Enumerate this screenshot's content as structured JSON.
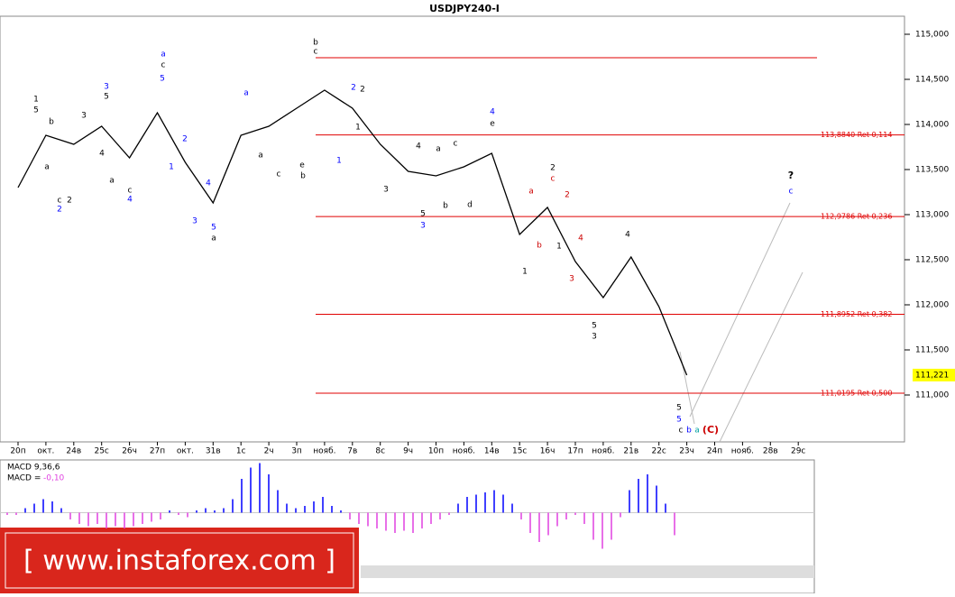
{
  "chart_data": [
    {
      "type": "line",
      "title": "USDJPY240-I",
      "categories": [
        "20п",
        "окт.",
        "24в",
        "25с",
        "26ч",
        "27п",
        "окт.",
        "31в",
        "1с",
        "2ч",
        "3п",
        "нояб.",
        "7в",
        "8с",
        "9ч",
        "10п",
        "нояб.",
        "14в",
        "15с",
        "16ч",
        "17п",
        "нояб.",
        "21в",
        "22с",
        "23ч",
        "24п",
        "нояб.",
        "28в",
        "29с"
      ],
      "series": [
        {
          "name": "USDJPY240-I",
          "color": "#000000",
          "values": [
            113.3,
            113.88,
            113.78,
            113.98,
            113.63,
            114.13,
            113.58,
            113.13,
            113.88,
            113.98,
            114.18,
            114.38,
            114.18,
            113.78,
            113.48,
            113.43,
            113.53,
            113.68,
            112.78,
            113.08,
            112.48,
            112.08,
            112.53,
            111.98,
            111.22,
            null,
            null,
            null,
            null
          ]
        }
      ],
      "ylim": [
        110.48,
        115.2
      ],
      "yticks": [
        {
          "value": 111,
          "label": "111,000"
        },
        {
          "value": 111.5,
          "label": "111,500"
        },
        {
          "value": 112,
          "label": "112,000"
        },
        {
          "value": 112.5,
          "label": "112,500"
        },
        {
          "value": 113,
          "label": "113,000"
        },
        {
          "value": 113.5,
          "label": "113,500"
        },
        {
          "value": 114,
          "label": "114,000"
        },
        {
          "value": 114.5,
          "label": "114,500"
        },
        {
          "value": 115,
          "label": "115,000"
        }
      ],
      "levels": [
        {
          "value": 114.74
        },
        {
          "value": 113.884,
          "label": "113,8840 Ret 0,114"
        },
        {
          "value": 112.9786,
          "label": "112,9786 Ret 0,236"
        },
        {
          "value": 111.8952,
          "label": "111,8952 Ret 0,382"
        },
        {
          "value": 111.0195,
          "label": "111,0195 Ret 0,500"
        }
      ],
      "level_color": "#e00000",
      "last_price": {
        "value": 111.221,
        "label": "111,221"
      },
      "annotations": [
        {
          "text": "1",
          "color": "#000000"
        },
        {
          "text": "5",
          "color": "#000000"
        },
        {
          "text": "b",
          "color": "#000000"
        },
        {
          "text": "a",
          "color": "#000000"
        },
        {
          "text": "c",
          "color": "#000000"
        },
        {
          "text": "2",
          "color": "#0000ff"
        },
        {
          "text": "2",
          "color": "#000000"
        },
        {
          "text": "3",
          "color": "#000000"
        },
        {
          "text": "3",
          "color": "#0000ff"
        },
        {
          "text": "5",
          "color": "#000000"
        },
        {
          "text": "4",
          "color": "#000000"
        },
        {
          "text": "a",
          "color": "#000000"
        },
        {
          "text": "c",
          "color": "#000000"
        },
        {
          "text": "4",
          "color": "#0000ff"
        },
        {
          "text": "a",
          "color": "#0000ff"
        },
        {
          "text": "c",
          "color": "#000000"
        },
        {
          "text": "5",
          "color": "#0000ff"
        },
        {
          "text": "2",
          "color": "#0000ff"
        },
        {
          "text": "1",
          "color": "#0000ff"
        },
        {
          "text": "4",
          "color": "#0000ff"
        },
        {
          "text": "3",
          "color": "#0000ff"
        },
        {
          "text": "5",
          "color": "#0000ff"
        },
        {
          "text": "a",
          "color": "#000000"
        },
        {
          "text": "a",
          "color": "#0000ff"
        },
        {
          "text": "a",
          "color": "#000000"
        },
        {
          "text": "c",
          "color": "#000000"
        },
        {
          "text": "e",
          "color": "#000000"
        },
        {
          "text": "b",
          "color": "#000000"
        },
        {
          "text": "b",
          "color": "#000000"
        },
        {
          "text": "c",
          "color": "#000000"
        },
        {
          "text": "2",
          "color": "#0000ff"
        },
        {
          "text": "2",
          "color": "#000000"
        },
        {
          "text": "1",
          "color": "#000000"
        },
        {
          "text": "1",
          "color": "#0000ff"
        },
        {
          "text": "3",
          "color": "#000000"
        },
        {
          "text": "4",
          "color": "#000000"
        },
        {
          "text": "a",
          "color": "#000000"
        },
        {
          "text": "c",
          "color": "#000000"
        },
        {
          "text": "b",
          "color": "#000000"
        },
        {
          "text": "d",
          "color": "#000000"
        },
        {
          "text": "5",
          "color": "#000000"
        },
        {
          "text": "3",
          "color": "#0000ff"
        },
        {
          "text": "4",
          "color": "#0000ff"
        },
        {
          "text": "e",
          "color": "#000000"
        },
        {
          "text": "2",
          "color": "#000000"
        },
        {
          "text": "c",
          "color": "#cc0000"
        },
        {
          "text": "a",
          "color": "#cc0000"
        },
        {
          "text": "2",
          "color": "#cc0000"
        },
        {
          "text": "b",
          "color": "#cc0000"
        },
        {
          "text": "1",
          "color": "#000000"
        },
        {
          "text": "4",
          "color": "#cc0000"
        },
        {
          "text": "3",
          "color": "#cc0000"
        },
        {
          "text": "1",
          "color": "#000000"
        },
        {
          "text": "5",
          "color": "#000000"
        },
        {
          "text": "3",
          "color": "#000000"
        },
        {
          "text": "4",
          "color": "#000000"
        },
        {
          "text": "5",
          "color": "#000000"
        },
        {
          "text": "5",
          "color": "#0000ff"
        },
        {
          "text": "c",
          "color": "#000000"
        },
        {
          "text": "b",
          "color": "#0000ff"
        },
        {
          "text": "a",
          "color": "#00a0a0"
        },
        {
          "text": "(C)",
          "color": "#cc0000"
        },
        {
          "text": "?",
          "color": "#000000"
        },
        {
          "text": "c",
          "color": "#0000ff"
        }
      ]
    },
    {
      "type": "bar",
      "title": "MACD 9,36,6",
      "value_name": "MACD =",
      "last_label": "-0,10",
      "values": [
        -0.01,
        -0.01,
        0.02,
        0.04,
        0.06,
        0.05,
        0.02,
        -0.03,
        -0.05,
        -0.06,
        -0.05,
        -0.07,
        -0.06,
        -0.07,
        -0.06,
        -0.05,
        -0.04,
        -0.03,
        0.01,
        -0.01,
        -0.02,
        0.01,
        0.02,
        0.01,
        0.02,
        0.06,
        0.15,
        0.2,
        0.22,
        0.17,
        0.1,
        0.04,
        0.02,
        0.03,
        0.05,
        0.07,
        0.03,
        0.01,
        -0.03,
        -0.05,
        -0.06,
        -0.07,
        -0.08,
        -0.09,
        -0.08,
        -0.09,
        -0.07,
        -0.05,
        -0.03,
        -0.01,
        0.04,
        0.07,
        0.08,
        0.09,
        0.1,
        0.08,
        0.04,
        -0.03,
        -0.09,
        -0.13,
        -0.1,
        -0.06,
        -0.03,
        -0.01,
        -0.05,
        -0.12,
        -0.16,
        -0.12,
        -0.02,
        0.1,
        0.15,
        0.17,
        0.12,
        0.04,
        -0.1
      ],
      "ylim": [
        -0.35,
        0.23
      ],
      "positive_color": "#0000ff",
      "negative_color": "#e040e0"
    }
  ],
  "watermark": "[ www.instaforex.com ]"
}
